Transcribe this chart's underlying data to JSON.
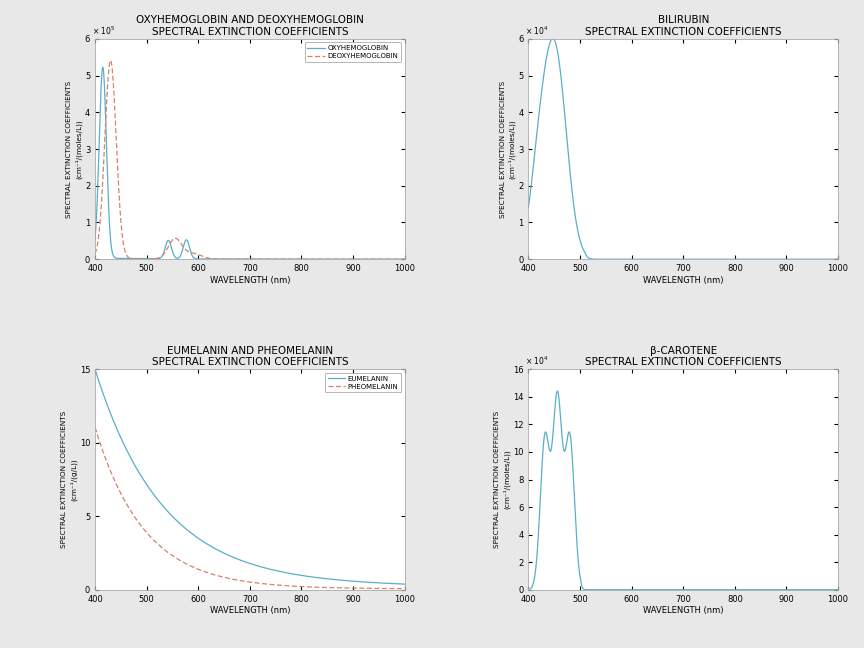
{
  "fig_width": 8.64,
  "fig_height": 6.48,
  "bg_color": "#e8e8e8",
  "plot_bg_color": "#ffffff",
  "line_color_blue": "#5aaec8",
  "line_color_orange": "#d4836a",
  "title_fontsize": 7.5,
  "label_fontsize": 6.0,
  "tick_fontsize": 6.0,
  "legend_fontsize": 5.0,
  "subplot_titles": [
    [
      "OXYHEMOGLOBIN AND DEOXYHEMOGLOBIN",
      "SPECTRAL EXTINCTION COEFFICIENTS"
    ],
    [
      "BILIRUBIN",
      "SPECTRAL EXTINCTION COEFFICIENTS"
    ],
    [
      "EUMELANIN AND PHEOMELANIN",
      "SPECTRAL EXTINCTION COEFFICIENTS"
    ],
    [
      "β-CAROTENE",
      "SPECTRAL EXTINCTION COEFFICIENTS"
    ]
  ],
  "xlabels": [
    "WAVELENGTH (nm)",
    "WAVELENGTH (nm)",
    "WAVELENGTH (nm)",
    "WAVELENGTH (nm)"
  ],
  "ylabels": [
    "SPECTRAL EXTINCTION COEFFICIENTS\n(cm⁻¹/(moles/L))",
    "SPECTRAL EXTINCTION COEFFICIENTS\n(cm⁻¹/(moles/L))",
    "SPECTRAL EXTINCTION COEFFICIENTS\n(cm⁻¹/(g/L))",
    "SPECTRAL EXTINCTION COEFFICIENTS\n(cm⁻¹/(moles/L))"
  ],
  "panel1": {
    "ylim": [
      0,
      600000.0
    ],
    "yticks": [
      0,
      100000.0,
      200000.0,
      300000.0,
      400000.0,
      500000.0,
      600000.0
    ],
    "scale_factor": 100000.0,
    "legend": [
      "OXYHEMOGLOBIN",
      "DEOXYHEMOGLOBIN"
    ]
  },
  "panel2": {
    "ylim": [
      0,
      60000.0
    ],
    "yticks": [
      0,
      10000.0,
      20000.0,
      30000.0,
      40000.0,
      50000.0,
      60000.0
    ],
    "scale_factor": 10000.0,
    "legend": []
  },
  "panel3": {
    "ylim": [
      0,
      15
    ],
    "yticks": [
      0,
      5,
      10,
      15
    ],
    "scale_factor": 1,
    "legend": [
      "EUMELANIN",
      "PHEOMELANIN"
    ]
  },
  "panel4": {
    "ylim": [
      0,
      160000.0
    ],
    "yticks": [
      0,
      20000.0,
      40000.0,
      60000.0,
      80000.0,
      100000.0,
      120000.0,
      140000.0,
      160000.0
    ],
    "scale_factor": 10000.0,
    "legend": []
  }
}
